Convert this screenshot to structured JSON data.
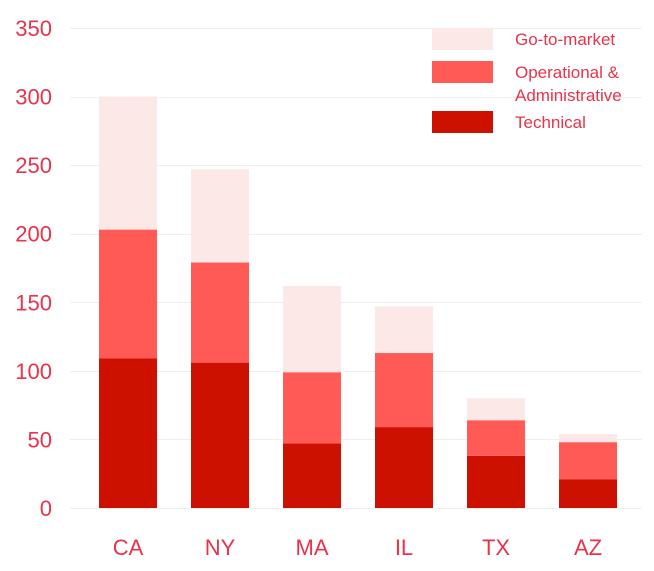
{
  "chart_data": {
    "type": "bar",
    "stacked": true,
    "title": "",
    "xlabel": "",
    "ylabel": "",
    "categories": [
      "CA",
      "NY",
      "MA",
      "IL",
      "TX",
      "AZ"
    ],
    "series": [
      {
        "name": "Technical",
        "color": "#cc1100",
        "values": [
          109,
          106,
          47,
          59,
          38,
          21
        ]
      },
      {
        "name": "Operational & Administrative",
        "color": "#ff5a55",
        "values": [
          94,
          73,
          52,
          54,
          26,
          27
        ]
      },
      {
        "name": "Go-to-market",
        "color": "#fce8e6",
        "values": [
          97,
          68,
          63,
          34,
          16,
          6
        ]
      }
    ],
    "ylim": [
      0,
      350
    ],
    "yticks": [
      0,
      50,
      100,
      150,
      200,
      250,
      300,
      350
    ],
    "grid": true,
    "legend": {
      "position": "top-right",
      "entries": [
        {
          "label_lines": [
            "Go-to-market"
          ],
          "color": "#fce8e6"
        },
        {
          "label_lines": [
            "Operational &",
            "Administrative"
          ],
          "color": "#ff5a55"
        },
        {
          "label_lines": [
            "Technical"
          ],
          "color": "#cc1100"
        }
      ]
    },
    "text_color": "#e8334a",
    "grid_color": "#eeeeee"
  }
}
